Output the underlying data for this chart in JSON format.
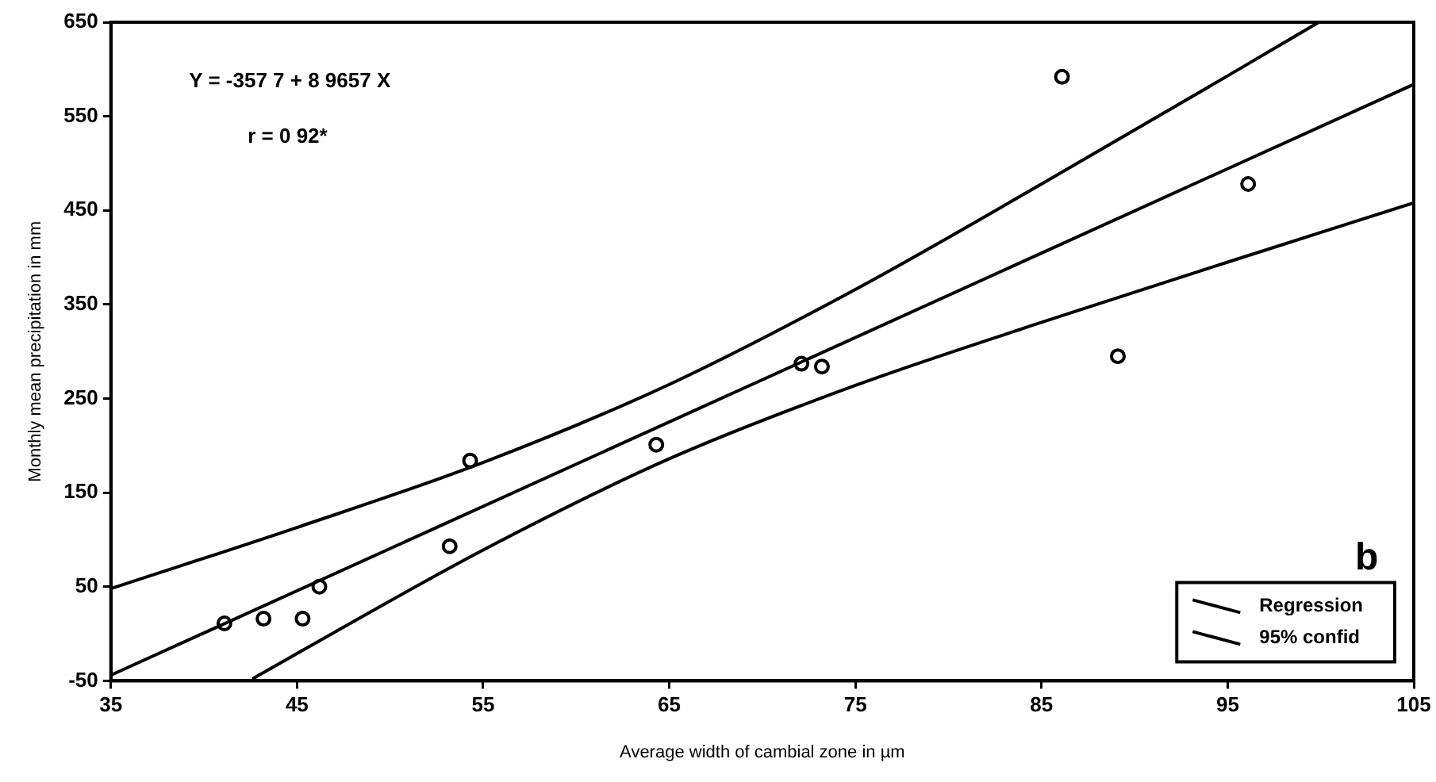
{
  "chart_data": {
    "type": "scatter",
    "xlabel": "Average width of cambial zone in µm",
    "ylabel": "Monthly mean precipitation in mm",
    "annotations": [
      "Y = -357 7 + 8 9657 X",
      "r = 0 92*",
      "b"
    ],
    "xlim": [
      35,
      105
    ],
    "xticks": [
      35,
      45,
      55,
      65,
      75,
      85,
      95,
      105
    ],
    "ylim": [
      -50,
      650
    ],
    "yticks": [
      -50,
      50,
      150,
      250,
      350,
      450,
      550,
      650
    ],
    "grid": false,
    "legend": "bottom right",
    "line_style": "solid",
    "series": [
      {
        "marker": "circle",
        "color": "#000000",
        "x": [
          41.1,
          43.2,
          45.3,
          46.2,
          53.2,
          54.3,
          64.3,
          72.1,
          73.2,
          86.1,
          89.1,
          96.1
        ],
        "values": [
          11,
          16,
          16,
          50,
          93,
          184,
          201,
          287,
          284,
          592,
          295,
          478
        ]
      },
      {
        "type": "line",
        "name": "Regression",
        "marker": "none",
        "color": "#000000",
        "x": [
          35,
          105
        ],
        "values": [
          -44,
          584
        ]
      },
      {
        "type": "line",
        "name": "95% confid",
        "marker": "none",
        "color": "#000000",
        "x": [
          35,
          45,
          55,
          65,
          75,
          85,
          95,
          99.9
        ],
        "values": [
          48,
          113,
          182,
          265,
          366,
          478,
          593,
          650
        ]
      },
      {
        "type": "line",
        "marker": "none",
        "color": "#000000",
        "x": [
          42.6,
          45,
          55,
          65,
          75,
          85,
          95,
          105
        ],
        "values": [
          -48,
          -21,
          89,
          186,
          264,
          331,
          395,
          458
        ]
      }
    ]
  }
}
